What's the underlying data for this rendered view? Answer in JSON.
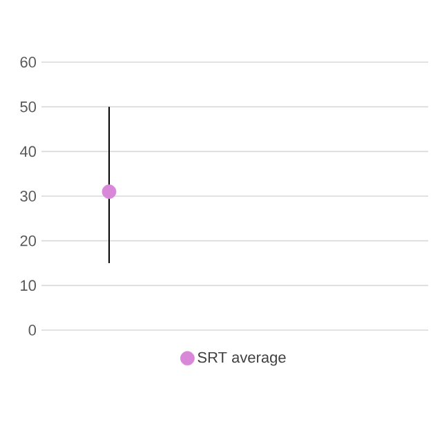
{
  "chart_data": {
    "type": "scatter",
    "categories": [
      null
    ],
    "series": [
      {
        "name": "SRT average",
        "color": "#d987d9",
        "values": [
          31
        ],
        "errors": [
          [
            15,
            50
          ]
        ]
      }
    ],
    "ylim": [
      0,
      60
    ],
    "yticks": [
      0,
      10,
      20,
      30,
      40,
      50,
      60
    ],
    "grid": "y",
    "legend": "bottom",
    "marker": "circle"
  }
}
